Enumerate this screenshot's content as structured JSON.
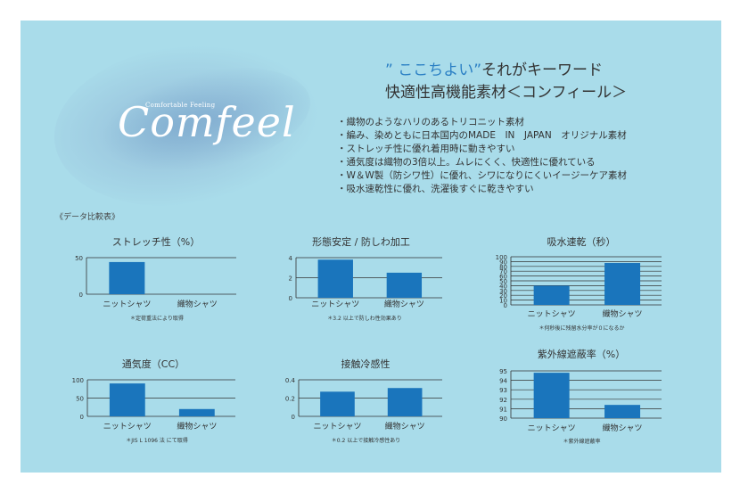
{
  "logo": {
    "tagline": "Comfortable Feeling",
    "name": "Comfeel"
  },
  "headline": {
    "line1_quote": "” ここちよい”",
    "line1_rest": "それがキーワード",
    "line2": "快適性高機能素材＜コンフィール＞"
  },
  "bullets": [
    "・織物のようなハリのあるトリコニット素材",
    "・編み、染めともに日本国内のMADE　IN　JAPAN　オリジナル素材",
    "・ストレッチ性に優れ着用時に動きやすい",
    "・通気度は織物の3倍以上。ムレにくく、快適性に優れている",
    "・W＆W製（防シワ性）に優れ、シワになりにくいイージーケア素材",
    "・吸水速乾性に優れ、洗濯後すぐに乾きやすい"
  ],
  "section_label": "《データ比較表》",
  "colors": {
    "panel": "#a9dcea",
    "bar": "#1a75bc",
    "grid": "#333333"
  },
  "chart_data": [
    {
      "type": "bar",
      "title": "ストレッチ性（%）",
      "categories": [
        "ニットシャツ",
        "織物シャツ"
      ],
      "values": [
        44,
        0
      ],
      "ylim": [
        0,
        50
      ],
      "yticks": [
        0,
        50
      ],
      "note": "＊定荷重法により取得",
      "grid": true
    },
    {
      "type": "bar",
      "title": "形態安定 / 防しわ加工",
      "categories": [
        "ニットシャツ",
        "織物シャツ"
      ],
      "values": [
        3.8,
        2.5
      ],
      "ylim": [
        0,
        4
      ],
      "yticks": [
        0,
        2,
        4
      ],
      "note": "＊3.2 以上で防しわ性効果あり",
      "grid": true
    },
    {
      "type": "bar",
      "title": "吸水速乾（秒）",
      "categories": [
        "ニットシャツ",
        "織物シャツ"
      ],
      "values": [
        40,
        87
      ],
      "ylim": [
        0,
        100
      ],
      "yticks": [
        0,
        10,
        20,
        30,
        40,
        50,
        60,
        70,
        80,
        90,
        100
      ],
      "note": "＊何秒後に残留水分率が０になるか",
      "grid": true
    },
    {
      "type": "bar",
      "title": "通気度（CC）",
      "categories": [
        "ニットシャツ",
        "織物シャツ"
      ],
      "values": [
        90,
        20
      ],
      "ylim": [
        0,
        100
      ],
      "yticks": [
        0,
        50,
        100
      ],
      "note": "＊JIS L 1096 法 にて取得",
      "grid": true
    },
    {
      "type": "bar",
      "title": "接触冷感性",
      "categories": [
        "ニットシャツ",
        "織物シャツ"
      ],
      "values": [
        0.27,
        0.31
      ],
      "ylim": [
        0,
        0.4
      ],
      "yticks": [
        0,
        0.2,
        0.4
      ],
      "note": "＊0.2 以上で接触冷感性あり",
      "grid": true
    },
    {
      "type": "bar",
      "title": "紫外線遮蔽率（%）",
      "categories": [
        "ニットシャツ",
        "織物シャツ"
      ],
      "values": [
        94.8,
        91.4
      ],
      "ylim": [
        90,
        95
      ],
      "yticks": [
        90,
        91,
        92,
        93,
        94,
        95
      ],
      "note": "＊紫外線遮蔽率",
      "grid": true
    }
  ]
}
